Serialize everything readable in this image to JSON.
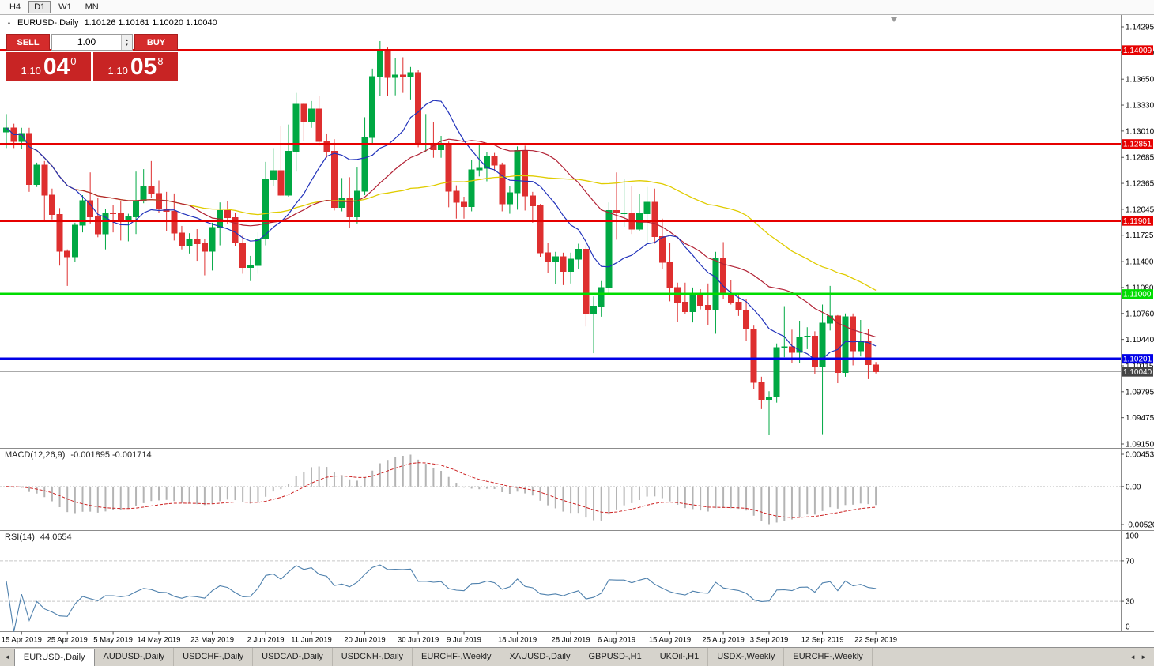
{
  "toolbar": {
    "timeframes": [
      {
        "label": "H4",
        "active": false
      },
      {
        "label": "D1",
        "active": true
      },
      {
        "label": "W1",
        "active": false
      },
      {
        "label": "MN",
        "active": false
      }
    ]
  },
  "icons": {
    "collapse": "▲",
    "spinner_up": "▴",
    "spinner_down": "▾",
    "tab_scroll_left": "◄",
    "tab_scroll_right": "◄ ►"
  },
  "chart": {
    "symbol_title": "EURUSD-,Daily",
    "ohlc_text": "1.10126 1.10161 1.10020 1.10040",
    "colors": {
      "bull": "#00a843",
      "bear": "#de2f2f",
      "ma_fast": "#2233bb",
      "ma_mid": "#b22235",
      "ma_slow": "#e0cc00",
      "macd_hist": "#b4b4b4",
      "macd_signal": "#cc2222",
      "rsi_line": "#4f81ad",
      "line_red": "#e60000",
      "line_green": "#00dc00",
      "line_blue": "#0000e6",
      "current_tag_bg": "#444444"
    }
  },
  "trade_panel": {
    "sell_label": "SELL",
    "buy_label": "BUY",
    "volume": "1.00",
    "sell_price": {
      "base": "1.10",
      "big": "04",
      "sup": "0"
    },
    "buy_price": {
      "base": "1.10",
      "big": "05",
      "sup": "8"
    }
  },
  "price_scale": {
    "ticks": [
      "1.14295",
      "1.13980",
      "1.13650",
      "1.13330",
      "1.13010",
      "1.12685",
      "1.12365",
      "1.12045",
      "1.11725",
      "1.11400",
      "1.11080",
      "1.10760",
      "1.10440",
      "1.10115",
      "1.09795",
      "1.09475",
      "1.09150"
    ]
  },
  "hlines": [
    {
      "price": 1.14009,
      "label": "1.14009",
      "color_key": "line_red",
      "width": 2.5
    },
    {
      "price": 1.12851,
      "label": "1.12851",
      "color_key": "line_red",
      "width": 2.5
    },
    {
      "price": 1.11901,
      "label": "1.11901",
      "color_key": "line_red",
      "width": 2.5
    },
    {
      "price": 1.11,
      "label": "1.11000",
      "color_key": "line_green",
      "width": 3
    },
    {
      "price": 1.10201,
      "label": "1.10201",
      "color_key": "line_blue",
      "width": 3.5
    }
  ],
  "current_price": {
    "value": 1.1004,
    "label": "1.10040"
  },
  "indicators": {
    "macd": {
      "label": "MACD(12,26,9)",
      "values": "-0.001895 -0.001714",
      "scale": {
        "max": "0.004536",
        "zero": "0.00",
        "min": "-0.005205"
      },
      "params": {
        "fast": 12,
        "slow": 26,
        "signal": 9
      }
    },
    "rsi": {
      "label": "RSI(14)",
      "value": "44.0654",
      "period": 14,
      "levels": [
        100,
        70,
        30,
        0
      ]
    }
  },
  "x_axis": {
    "labels": [
      {
        "text": "15 Apr 2019",
        "index": 2
      },
      {
        "text": "25 Apr 2019",
        "index": 8
      },
      {
        "text": "5 May 2019",
        "index": 14
      },
      {
        "text": "14 May 2019",
        "index": 20
      },
      {
        "text": "23 May 2019",
        "index": 27
      },
      {
        "text": "2 Jun 2019",
        "index": 34
      },
      {
        "text": "11 Jun 2019",
        "index": 40
      },
      {
        "text": "20 Jun 2019",
        "index": 47
      },
      {
        "text": "30 Jun 2019",
        "index": 54
      },
      {
        "text": "9 Jul 2019",
        "index": 60
      },
      {
        "text": "18 Jul 2019",
        "index": 67
      },
      {
        "text": "28 Jul 2019",
        "index": 74
      },
      {
        "text": "6 Aug 2019",
        "index": 80
      },
      {
        "text": "15 Aug 2019",
        "index": 87
      },
      {
        "text": "25 Aug 2019",
        "index": 94
      },
      {
        "text": "3 Sep 2019",
        "index": 100
      },
      {
        "text": "12 Sep 2019",
        "index": 107
      },
      {
        "text": "22 Sep 2019",
        "index": 114
      }
    ]
  },
  "tabs": [
    {
      "label": "EURUSD-,Daily",
      "active": true
    },
    {
      "label": "AUDUSD-,Daily",
      "active": false
    },
    {
      "label": "USDCHF-,Daily",
      "active": false
    },
    {
      "label": "USDCAD-,Daily",
      "active": false
    },
    {
      "label": "USDCNH-,Daily",
      "active": false
    },
    {
      "label": "EURCHF-,Weekly",
      "active": false
    },
    {
      "label": "XAUUSD-,Daily",
      "active": false
    },
    {
      "label": "GBPUSD-,H1",
      "active": false
    },
    {
      "label": "UKOil-,H1",
      "active": false
    },
    {
      "label": "USDX-,Weekly",
      "active": false
    },
    {
      "label": "EURCHF-,Weekly",
      "active": false
    }
  ],
  "chart_data": {
    "type": "candlestick",
    "symbol": "EURUSD-",
    "timeframe": "Daily",
    "y_range": [
      1.0915,
      1.14295
    ],
    "ohlc_current": {
      "open": 1.10126,
      "high": 1.10161,
      "low": 1.1002,
      "close": 1.1004
    },
    "candles": [
      [
        1.13,
        1.1322,
        1.128,
        1.1305
      ],
      [
        1.1305,
        1.131,
        1.128,
        1.1288
      ],
      [
        1.1288,
        1.1305,
        1.1279,
        1.1298
      ],
      [
        1.1298,
        1.1305,
        1.1226,
        1.1235
      ],
      [
        1.1235,
        1.1262,
        1.1232,
        1.1259
      ],
      [
        1.1259,
        1.1264,
        1.119,
        1.1222
      ],
      [
        1.1222,
        1.123,
        1.1192,
        1.1198
      ],
      [
        1.1198,
        1.1206,
        1.1135,
        1.1153
      ],
      [
        1.1153,
        1.1155,
        1.111,
        1.1146
      ],
      [
        1.1146,
        1.1188,
        1.114,
        1.1185
      ],
      [
        1.1185,
        1.1222,
        1.1176,
        1.1215
      ],
      [
        1.1215,
        1.125,
        1.1187,
        1.1195
      ],
      [
        1.1195,
        1.1219,
        1.117,
        1.1174
      ],
      [
        1.1174,
        1.1205,
        1.1155,
        1.12
      ],
      [
        1.12,
        1.121,
        1.1176,
        1.1199
      ],
      [
        1.1199,
        1.1215,
        1.1166,
        1.119
      ],
      [
        1.119,
        1.1199,
        1.1165,
        1.1195
      ],
      [
        1.1195,
        1.1251,
        1.1174,
        1.1215
      ],
      [
        1.1215,
        1.1254,
        1.1212,
        1.1232
      ],
      [
        1.1232,
        1.1264,
        1.1219,
        1.1224
      ],
      [
        1.1224,
        1.124,
        1.12,
        1.1205
      ],
      [
        1.1205,
        1.1226,
        1.1178,
        1.1202
      ],
      [
        1.1202,
        1.1224,
        1.1166,
        1.1175
      ],
      [
        1.1175,
        1.1184,
        1.1155,
        1.1159
      ],
      [
        1.1159,
        1.1175,
        1.115,
        1.1168
      ],
      [
        1.1168,
        1.118,
        1.1141,
        1.1162
      ],
      [
        1.1162,
        1.1168,
        1.1123,
        1.1153
      ],
      [
        1.1153,
        1.1188,
        1.1129,
        1.1182
      ],
      [
        1.1182,
        1.1213,
        1.116,
        1.1203
      ],
      [
        1.1203,
        1.1215,
        1.1186,
        1.1194
      ],
      [
        1.1194,
        1.12,
        1.1159,
        1.1163
      ],
      [
        1.1163,
        1.1172,
        1.1125,
        1.1133
      ],
      [
        1.1133,
        1.1147,
        1.1116,
        1.1135
      ],
      [
        1.1135,
        1.1176,
        1.1125,
        1.1168
      ],
      [
        1.1168,
        1.1263,
        1.116,
        1.1241
      ],
      [
        1.1241,
        1.128,
        1.1233,
        1.1252
      ],
      [
        1.1252,
        1.1307,
        1.1221,
        1.1222
      ],
      [
        1.1222,
        1.1309,
        1.122,
        1.1276
      ],
      [
        1.1276,
        1.1348,
        1.1251,
        1.1334
      ],
      [
        1.1334,
        1.1336,
        1.1289,
        1.1312
      ],
      [
        1.1312,
        1.1338,
        1.1305,
        1.1328
      ],
      [
        1.1328,
        1.1344,
        1.1283,
        1.1288
      ],
      [
        1.1288,
        1.1298,
        1.1268,
        1.1276
      ],
      [
        1.1276,
        1.1291,
        1.1203,
        1.1207
      ],
      [
        1.1207,
        1.1243,
        1.1202,
        1.1218
      ],
      [
        1.1218,
        1.1244,
        1.1181,
        1.1195
      ],
      [
        1.1195,
        1.1256,
        1.1187,
        1.1227
      ],
      [
        1.1227,
        1.1318,
        1.1222,
        1.1293
      ],
      [
        1.1293,
        1.1378,
        1.1285,
        1.1368
      ],
      [
        1.1368,
        1.1412,
        1.1344,
        1.1399
      ],
      [
        1.1399,
        1.1404,
        1.1344,
        1.1367
      ],
      [
        1.1367,
        1.1391,
        1.1345,
        1.137
      ],
      [
        1.137,
        1.1392,
        1.1348,
        1.1368
      ],
      [
        1.1368,
        1.138,
        1.134,
        1.1373
      ],
      [
        1.1373,
        1.1376,
        1.1281,
        1.1285
      ],
      [
        1.1285,
        1.1322,
        1.1275,
        1.1286
      ],
      [
        1.1286,
        1.1312,
        1.1268,
        1.1278
      ],
      [
        1.1278,
        1.1295,
        1.1268,
        1.1283
      ],
      [
        1.1283,
        1.1288,
        1.1207,
        1.1227
      ],
      [
        1.1227,
        1.1234,
        1.1193,
        1.1213
      ],
      [
        1.1213,
        1.122,
        1.1193,
        1.1208
      ],
      [
        1.1208,
        1.1265,
        1.1202,
        1.1253
      ],
      [
        1.1253,
        1.1286,
        1.1245,
        1.1255
      ],
      [
        1.1255,
        1.1275,
        1.1239,
        1.127
      ],
      [
        1.127,
        1.1274,
        1.1251,
        1.1259
      ],
      [
        1.1259,
        1.1262,
        1.1202,
        1.1211
      ],
      [
        1.1211,
        1.1233,
        1.1199,
        1.1225
      ],
      [
        1.1225,
        1.1282,
        1.1204,
        1.1277
      ],
      [
        1.1277,
        1.1283,
        1.1203,
        1.1221
      ],
      [
        1.1221,
        1.1226,
        1.1188,
        1.1209
      ],
      [
        1.1209,
        1.1211,
        1.1146,
        1.1151
      ],
      [
        1.1151,
        1.1163,
        1.1126,
        1.114
      ],
      [
        1.114,
        1.1152,
        1.1112,
        1.1146
      ],
      [
        1.1146,
        1.1151,
        1.1111,
        1.1128
      ],
      [
        1.1128,
        1.1151,
        1.1113,
        1.1143
      ],
      [
        1.1143,
        1.1162,
        1.1131,
        1.1155
      ],
      [
        1.1155,
        1.116,
        1.106,
        1.1076
      ],
      [
        1.1076,
        1.1097,
        1.1027,
        1.1085
      ],
      [
        1.1085,
        1.1116,
        1.1072,
        1.1108
      ],
      [
        1.1108,
        1.1213,
        1.1101,
        1.1203
      ],
      [
        1.1203,
        1.125,
        1.1167,
        1.12
      ],
      [
        1.12,
        1.1242,
        1.1183,
        1.12
      ],
      [
        1.12,
        1.1233,
        1.1174,
        1.118
      ],
      [
        1.118,
        1.1223,
        1.1178,
        1.1199
      ],
      [
        1.1199,
        1.1232,
        1.1163,
        1.1213
      ],
      [
        1.1213,
        1.123,
        1.1162,
        1.1171
      ],
      [
        1.1171,
        1.1193,
        1.1131,
        1.1139
      ],
      [
        1.1139,
        1.1163,
        1.1091,
        1.1108
      ],
      [
        1.1108,
        1.1114,
        1.1066,
        1.109
      ],
      [
        1.109,
        1.1114,
        1.1075,
        1.1078
      ],
      [
        1.1078,
        1.1108,
        1.1065,
        1.1099
      ],
      [
        1.1099,
        1.1106,
        1.1081,
        1.1086
      ],
      [
        1.1086,
        1.1113,
        1.1062,
        1.1081
      ],
      [
        1.1081,
        1.1152,
        1.1051,
        1.1144
      ],
      [
        1.1144,
        1.1164,
        1.1094,
        1.1101
      ],
      [
        1.1101,
        1.1117,
        1.1087,
        1.109
      ],
      [
        1.109,
        1.1098,
        1.1073,
        1.108
      ],
      [
        1.108,
        1.1094,
        1.1042,
        1.1057
      ],
      [
        1.1057,
        1.1061,
        1.0983,
        1.0991
      ],
      [
        1.0991,
        1.0998,
        1.0958,
        1.097
      ],
      [
        1.097,
        1.098,
        1.0926,
        1.0973
      ],
      [
        1.0973,
        1.1039,
        1.0966,
        1.1034
      ],
      [
        1.1034,
        1.1085,
        1.1022,
        1.1035
      ],
      [
        1.1035,
        1.1056,
        1.1015,
        1.1028
      ],
      [
        1.1028,
        1.1067,
        1.1015,
        1.1047
      ],
      [
        1.1047,
        1.1059,
        1.1032,
        1.1048
      ],
      [
        1.1048,
        1.1054,
        1.1001,
        1.101
      ],
      [
        1.101,
        1.1087,
        1.0927,
        1.1064
      ],
      [
        1.1064,
        1.111,
        1.1055,
        1.1073
      ],
      [
        1.1073,
        1.1074,
        1.099,
        1.1003
      ],
      [
        1.1003,
        1.1076,
        1.0998,
        1.1072
      ],
      [
        1.1072,
        1.1076,
        1.1012,
        1.103
      ],
      [
        1.103,
        1.1068,
        1.1023,
        1.1041
      ],
      [
        1.1041,
        1.1057,
        1.0995,
        1.1013
      ],
      [
        1.10126,
        1.10161,
        1.1002,
        1.1004
      ]
    ]
  }
}
